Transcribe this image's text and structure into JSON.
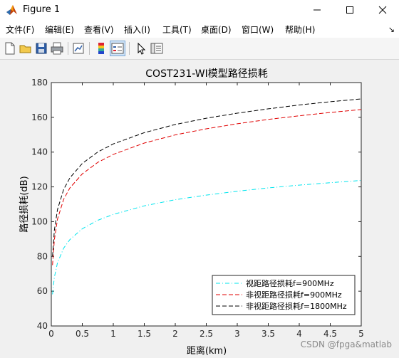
{
  "window": {
    "title": "Figure 1"
  },
  "menu": {
    "items": [
      "文件(F)",
      "编辑(E)",
      "查看(V)",
      "插入(I)",
      "工具(T)",
      "桌面(D)",
      "窗口(W)",
      "帮助(H)"
    ]
  },
  "toolbar": {
    "buttons": [
      "new-figure-icon",
      "open-file-icon",
      "save-icon",
      "print-icon",
      "link-plot-icon",
      "colorbar-icon",
      "legend-icon",
      "pointer-icon",
      "property-editor-icon"
    ]
  },
  "watermark": "CSDN @fpga&matlab",
  "chart_data": {
    "type": "line",
    "title": "COST231-WI模型路径损耗",
    "xlabel": "距离(km)",
    "ylabel": "路径损耗(dB)",
    "xlim": [
      0,
      5
    ],
    "ylim": [
      40,
      180
    ],
    "xticks": [
      "0",
      "0.5",
      "1",
      "1.5",
      "2",
      "2.5",
      "3",
      "3.5",
      "4",
      "4.5",
      "5"
    ],
    "yticks": [
      "40",
      "60",
      "80",
      "100",
      "120",
      "140",
      "160",
      "180"
    ],
    "grid": false,
    "legend_position": "bottom-right",
    "x": [
      0.02,
      0.05,
      0.1,
      0.2,
      0.3,
      0.5,
      0.75,
      1,
      1.5,
      2,
      2.5,
      3,
      3.5,
      4,
      4.5,
      5
    ],
    "series": [
      {
        "name": "视距路径损耗f=900MHz",
        "color": "#00e5ee",
        "dash": "dashdot",
        "values": [
          58.2,
          68.0,
          76.4,
          84.8,
          89.7,
          95.9,
          100.8,
          104.2,
          109.1,
          112.6,
          115.3,
          117.5,
          119.4,
          121.0,
          122.4,
          123.7
        ]
      },
      {
        "name": "非视距路径损耗f=900MHz",
        "color": "#e00000",
        "dash": "dashed",
        "values": [
          75.0,
          89.6,
          101.5,
          112.9,
          119.4,
          127.5,
          134.1,
          138.7,
          145.2,
          149.9,
          153.4,
          156.3,
          158.8,
          160.9,
          162.8,
          164.5
        ]
      },
      {
        "name": "非视距路径损耗f=1800MHz",
        "color": "#000000",
        "dash": "dashed",
        "values": [
          80.0,
          95.0,
          107.0,
          118.6,
          125.2,
          133.5,
          140.1,
          144.7,
          151.2,
          155.9,
          159.5,
          162.4,
          164.9,
          167.1,
          169.0,
          170.6
        ]
      }
    ]
  }
}
